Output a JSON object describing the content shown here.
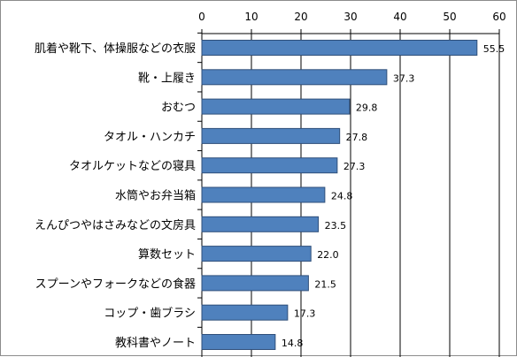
{
  "chart_data": {
    "type": "bar",
    "orientation": "horizontal",
    "categories": [
      "肌着や靴下、体操服などの衣服",
      "靴・上履き",
      "おむつ",
      "タオル・ハンカチ",
      "タオルケットなどの寝具",
      "水筒やお弁当箱",
      "えんぴつやはさみなどの文房具",
      "算数セット",
      "スプーンやフォークなどの食器",
      "コップ・歯ブラシ",
      "教科書やノート"
    ],
    "values": [
      55.5,
      37.3,
      29.8,
      27.8,
      27.3,
      24.8,
      23.5,
      22.0,
      21.5,
      17.3,
      14.8
    ],
    "value_labels": [
      "55.5",
      "37.3",
      "29.8",
      "27.8",
      "27.3",
      "24.8",
      "23.5",
      "22.0",
      "21.5",
      "17.3",
      "14.8"
    ],
    "x_ticks": [
      "0",
      "10",
      "20",
      "30",
      "40",
      "50",
      "60"
    ],
    "xlim": [
      0,
      60
    ],
    "title": "",
    "xlabel": "",
    "ylabel": "",
    "grid": "vertical",
    "axis_position": "top",
    "legend": "none",
    "colors": {
      "bar_fill": "#4f81bd",
      "bar_stroke": "#2f4f7a",
      "gridline": "#000000",
      "frame": "#8c8c8c"
    }
  }
}
